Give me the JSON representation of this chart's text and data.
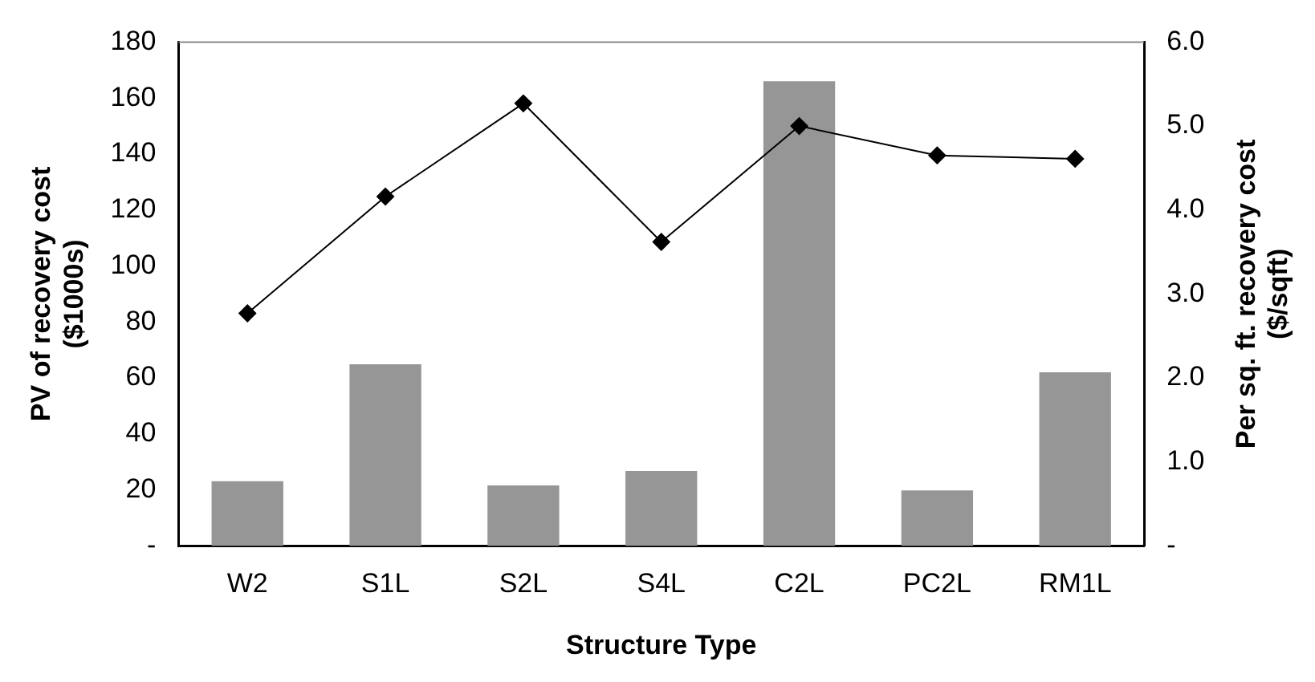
{
  "chart_data": {
    "type": "bar",
    "xlabel": "Structure Type",
    "ylabel": "PV of recovery cost\n($1000s)",
    "y2label": "Per sq. ft. recovery cost\n($/sqft)",
    "categories": [
      "W2",
      "S1L",
      "S2L",
      "S4L",
      "C2L",
      "PC2L",
      "RM1L"
    ],
    "series": [
      {
        "color": "#969696",
        "values": [
          23.1,
          64.9,
          21.6,
          26.8,
          166,
          19.8,
          62.0
        ]
      },
      {
        "type": "line",
        "axis": "y2",
        "color": "#000000",
        "marker": "diamond",
        "values": [
          2.77,
          4.16,
          5.27,
          3.62,
          5.0,
          4.65,
          4.61
        ]
      }
    ],
    "ylim": [
      0,
      180
    ],
    "yticks": [
      {
        "value": 0,
        "label": "-"
      },
      20,
      40,
      60,
      80,
      100,
      120,
      140,
      160,
      180
    ],
    "y2lim": [
      0,
      6
    ],
    "y2ticks": [
      {
        "value": 0,
        "label": "-"
      },
      {
        "value": 1,
        "label": "1.0"
      },
      {
        "value": 2,
        "label": "2.0"
      },
      {
        "value": 3,
        "label": "3.0"
      },
      {
        "value": 4,
        "label": "4.0"
      },
      {
        "value": 5,
        "label": "5.0"
      },
      {
        "value": 6,
        "label": "6.0"
      }
    ],
    "grid": false,
    "legend": false
  }
}
